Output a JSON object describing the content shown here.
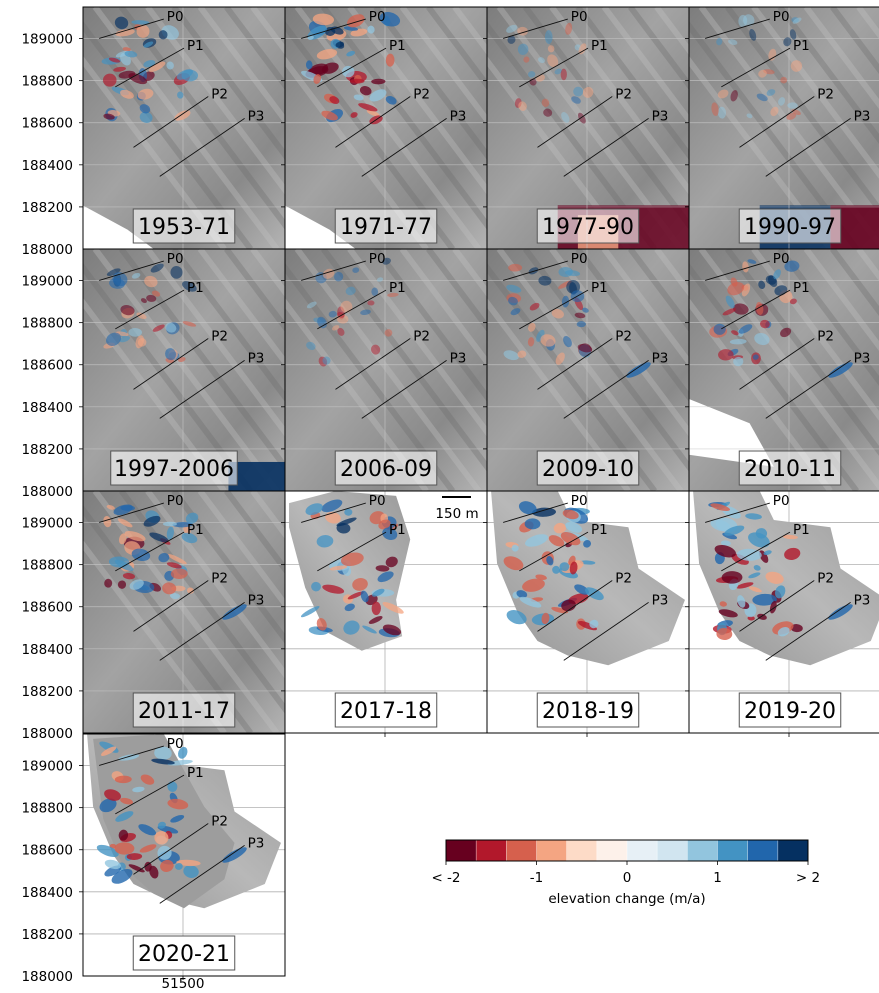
{
  "chart_data": {
    "type": "heatmap",
    "title": "",
    "panels": [
      {
        "period": "1953-71",
        "profiles": [
          "P0",
          "P1",
          "P2",
          "P3"
        ]
      },
      {
        "period": "1971-77",
        "profiles": [
          "P0",
          "P1",
          "P2",
          "P3"
        ]
      },
      {
        "period": "1977-90",
        "profiles": [
          "P0",
          "P1",
          "P2",
          "P3"
        ]
      },
      {
        "period": "1990-97",
        "profiles": [
          "P0",
          "P1",
          "P2",
          "P3"
        ]
      },
      {
        "period": "1997-2006",
        "profiles": [
          "P0",
          "P1",
          "P2",
          "P3"
        ]
      },
      {
        "period": "2006-09",
        "profiles": [
          "P0",
          "P1",
          "P2",
          "P3"
        ]
      },
      {
        "period": "2009-10",
        "profiles": [
          "P0",
          "P1",
          "P2",
          "P3"
        ]
      },
      {
        "period": "2010-11",
        "profiles": [
          "P0",
          "P1",
          "P2",
          "P3"
        ]
      },
      {
        "period": "2011-17",
        "profiles": [
          "P0",
          "P1",
          "P2",
          "P3"
        ]
      },
      {
        "period": "2017-18",
        "profiles": [
          "P0",
          "P1"
        ]
      },
      {
        "period": "2018-19",
        "profiles": [
          "P0",
          "P1",
          "P2",
          "P3"
        ]
      },
      {
        "period": "2019-20",
        "profiles": [
          "P0",
          "P1",
          "P2",
          "P3"
        ]
      },
      {
        "period": "2020-21",
        "profiles": [
          "P0",
          "P1",
          "P2",
          "P3"
        ]
      }
    ],
    "y_ticks": [
      189000,
      188800,
      188600,
      188400,
      188200,
      188000
    ],
    "ylim": [
      188000,
      189150
    ],
    "x_ticks": [
      51500
    ],
    "scale_bar": "150 m",
    "colorbar": {
      "label": "elevation change (m/a)",
      "range": [
        -2,
        2
      ],
      "bins": 12,
      "tick_values": [
        -2,
        -1,
        0,
        1,
        2
      ],
      "tick_labels": [
        "< -2",
        "-1",
        "0",
        "1",
        "> 2"
      ],
      "colors": [
        "#67001f",
        "#b2182b",
        "#d6604d",
        "#f4a582",
        "#fddbc7",
        "#fdf1ea",
        "#e7f0f6",
        "#d1e5f0",
        "#92c5de",
        "#4393c3",
        "#2166ac",
        "#053061"
      ]
    }
  }
}
